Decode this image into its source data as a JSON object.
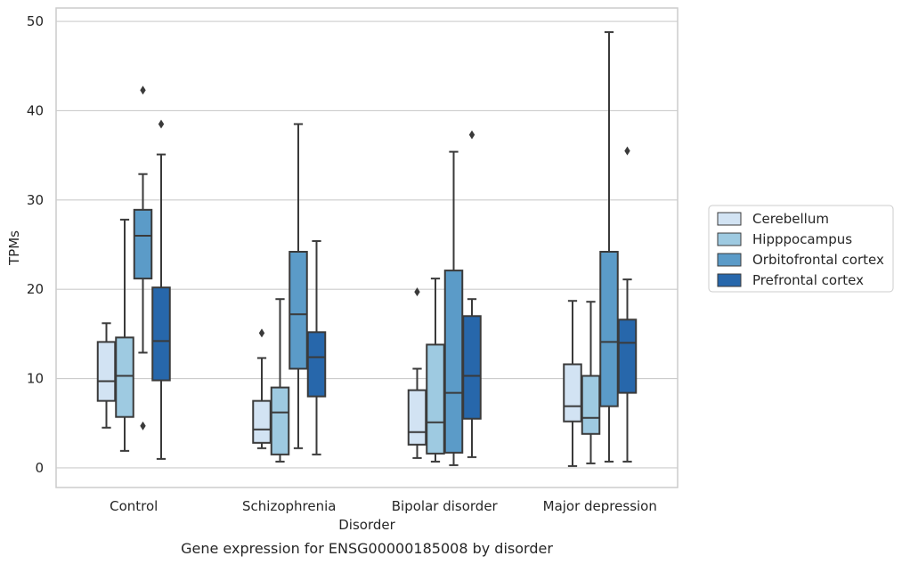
{
  "chart_data": {
    "type": "boxplot",
    "title": "",
    "caption": "Gene expression for ENSG00000185008 by disorder",
    "xlabel": "Disorder",
    "ylabel": "TPMs",
    "ylim": [
      -2.2,
      51.5
    ],
    "yticks": [
      0,
      10,
      20,
      30,
      40,
      50
    ],
    "grid": "horizontal",
    "legend_placement": "right",
    "categories": [
      "Control",
      "Schizophrenia",
      "Bipolar disorder",
      "Major depression"
    ],
    "series": [
      {
        "name": "Cerebellum",
        "color": "#d2e3f3",
        "boxes": [
          {
            "whislo": 4.5,
            "q1": 7.5,
            "med": 9.7,
            "q3": 14.1,
            "whishi": 16.2,
            "fliers": []
          },
          {
            "whislo": 2.2,
            "q1": 2.8,
            "med": 4.3,
            "q3": 7.5,
            "whishi": 12.3,
            "fliers": [
              15.1
            ]
          },
          {
            "whislo": 1.1,
            "q1": 2.6,
            "med": 4.0,
            "q3": 8.7,
            "whishi": 11.1,
            "fliers": [
              19.7
            ]
          },
          {
            "whislo": 0.2,
            "q1": 5.2,
            "med": 6.9,
            "q3": 11.6,
            "whishi": 18.7,
            "fliers": []
          }
        ]
      },
      {
        "name": "Hipppocampus",
        "color": "#9ecae1",
        "boxes": [
          {
            "whislo": 1.9,
            "q1": 5.7,
            "med": 10.3,
            "q3": 14.6,
            "whishi": 27.8,
            "fliers": []
          },
          {
            "whislo": 0.7,
            "q1": 1.5,
            "med": 6.2,
            "q3": 9.0,
            "whishi": 18.9,
            "fliers": []
          },
          {
            "whislo": 0.7,
            "q1": 1.6,
            "med": 5.1,
            "q3": 13.8,
            "whishi": 21.2,
            "fliers": []
          },
          {
            "whislo": 0.5,
            "q1": 3.8,
            "med": 5.6,
            "q3": 10.3,
            "whishi": 18.6,
            "fliers": []
          }
        ]
      },
      {
        "name": "Orbitofrontal cortex",
        "color": "#5b9bc8",
        "boxes": [
          {
            "whislo": 12.9,
            "q1": 21.2,
            "med": 26.0,
            "q3": 28.9,
            "whishi": 32.9,
            "fliers": [
              42.3,
              4.7
            ]
          },
          {
            "whislo": 2.2,
            "q1": 11.1,
            "med": 17.2,
            "q3": 24.2,
            "whishi": 38.5,
            "fliers": []
          },
          {
            "whislo": 0.3,
            "q1": 1.7,
            "med": 8.4,
            "q3": 22.1,
            "whishi": 35.4,
            "fliers": []
          },
          {
            "whislo": 0.7,
            "q1": 6.9,
            "med": 14.1,
            "q3": 24.2,
            "whishi": 48.8,
            "fliers": []
          }
        ]
      },
      {
        "name": "Prefrontal cortex",
        "color": "#2767ab",
        "boxes": [
          {
            "whislo": 1.0,
            "q1": 9.8,
            "med": 14.2,
            "q3": 20.2,
            "whishi": 35.1,
            "fliers": [
              38.5
            ]
          },
          {
            "whislo": 1.5,
            "q1": 8.0,
            "med": 12.4,
            "q3": 15.2,
            "whishi": 25.4,
            "fliers": []
          },
          {
            "whislo": 1.2,
            "q1": 5.5,
            "med": 10.3,
            "q3": 17.0,
            "whishi": 18.9,
            "fliers": [
              37.3
            ]
          },
          {
            "whislo": 0.7,
            "q1": 8.4,
            "med": 14.0,
            "q3": 16.6,
            "whishi": 21.1,
            "fliers": [
              35.5
            ]
          }
        ]
      }
    ]
  }
}
